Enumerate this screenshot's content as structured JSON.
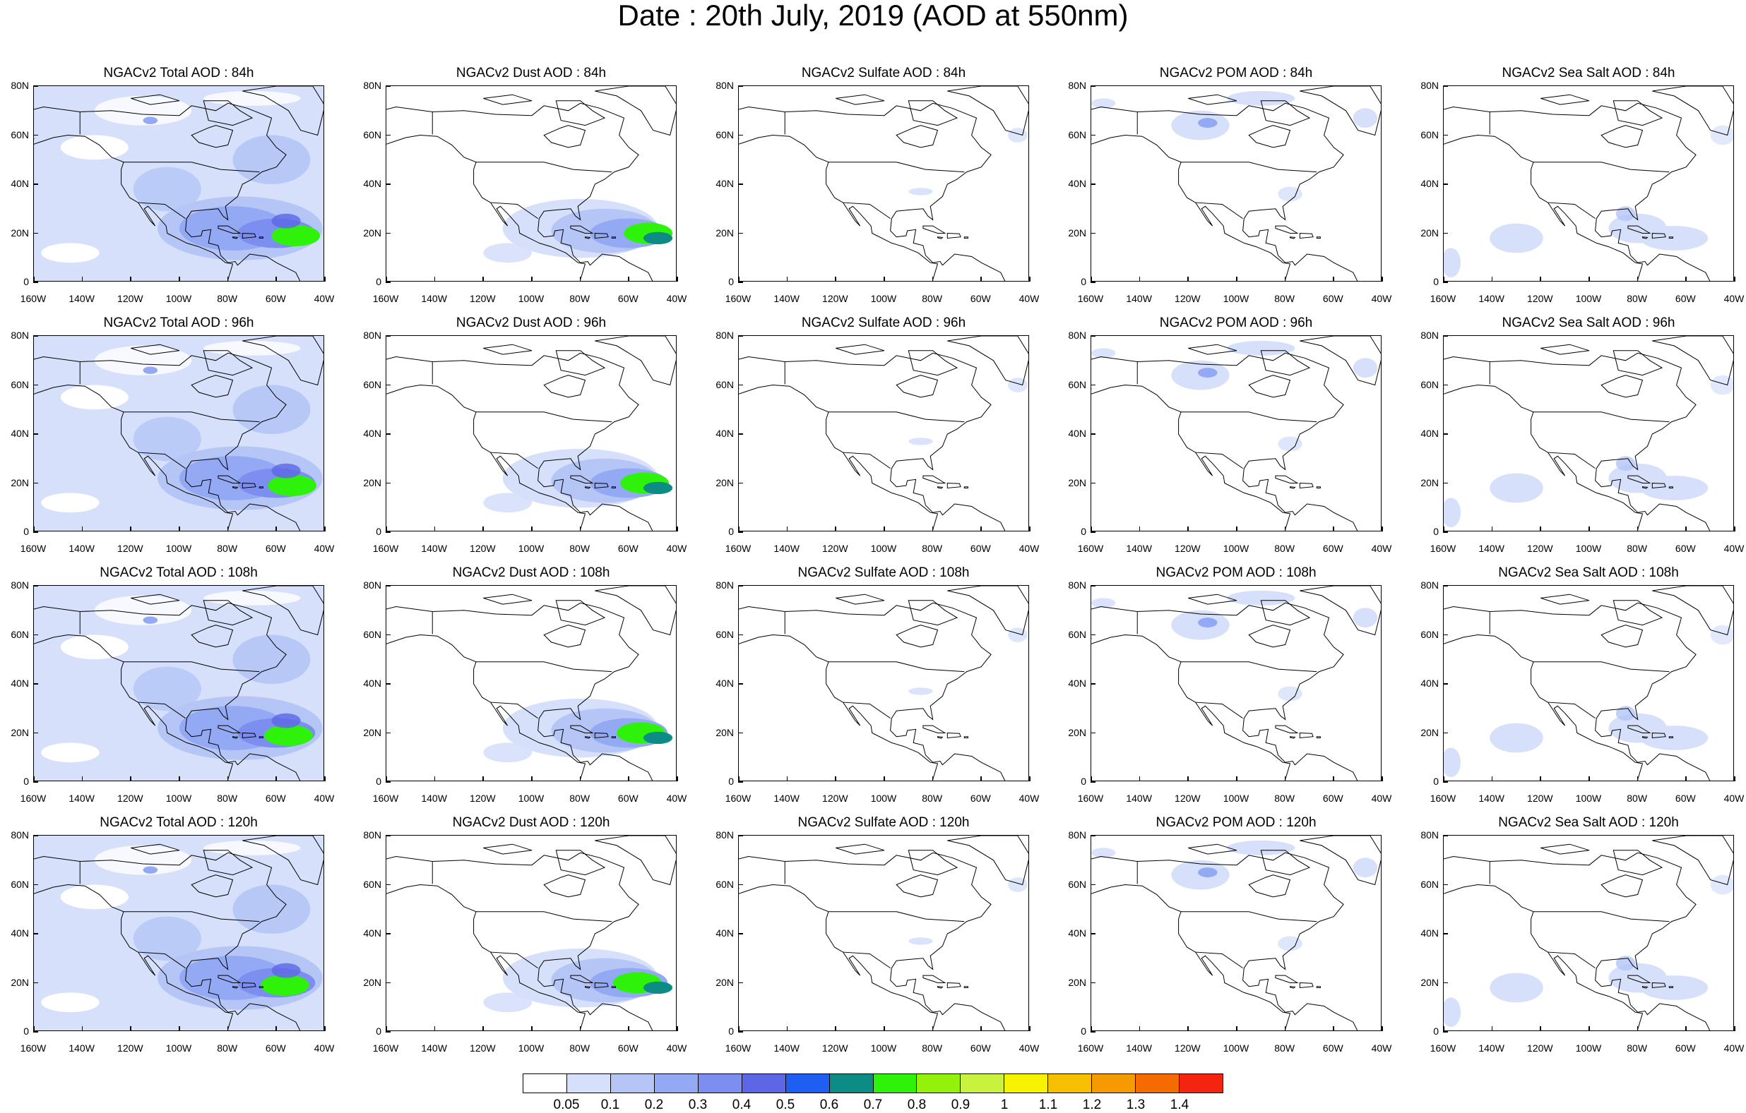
{
  "title": "Date : 20th July, 2019 (AOD at 550nm)",
  "x_ticks": [
    "160W",
    "140W",
    "120W",
    "100W",
    "80W",
    "60W",
    "40W"
  ],
  "y_ticks": [
    "80N",
    "60N",
    "40N",
    "20N",
    "0"
  ],
  "rows": [
    {
      "hour": "84h",
      "titles": [
        "NGACv2 Total AOD : 84h",
        "NGACv2 Dust AOD : 84h",
        "NGACv2 Sulfate AOD : 84h",
        "NGACv2 POM AOD : 84h",
        "NGACv2 Sea Salt AOD : 84h"
      ]
    },
    {
      "hour": "96h",
      "titles": [
        "NGACv2 Total AOD : 96h",
        "NGACv2 Dust AOD : 96h",
        "NGACv2 Sulfate AOD : 96h",
        "NGACv2 POM AOD : 96h",
        "NGACv2 Sea Salt AOD : 96h"
      ]
    },
    {
      "hour": "108h",
      "titles": [
        "NGACv2 Total AOD : 108h",
        "NGACv2 Dust AOD : 108h",
        "NGACv2 Sulfate AOD : 108h",
        "NGACv2 POM AOD : 108h",
        "NGACv2 Sea Salt AOD : 108h"
      ]
    },
    {
      "hour": "120h",
      "titles": [
        "NGACv2 Total AOD : 120h",
        "NGACv2 Dust AOD : 120h",
        "NGACv2 Sulfate AOD : 120h",
        "NGACv2 POM AOD : 120h",
        "NGACv2 Sea Salt  AOD : 120h"
      ]
    }
  ],
  "products": [
    "Total",
    "Dust",
    "Sulfate",
    "POM",
    "Sea Salt"
  ],
  "colorbar": {
    "labels": [
      "0.05",
      "0.1",
      "0.2",
      "0.3",
      "0.4",
      "0.5",
      "0.6",
      "0.7",
      "0.8",
      "0.9",
      "1",
      "1.1",
      "1.2",
      "1.3",
      "1.4"
    ],
    "colors": [
      "#ffffff",
      "#d6e0fb",
      "#b4c5f6",
      "#93a9f3",
      "#7c8ff0",
      "#5d66e6",
      "#1f5ef2",
      "#0d8c86",
      "#2ef20a",
      "#94f20a",
      "#c8f23e",
      "#f7f200",
      "#f6c000",
      "#f59b00",
      "#f46c00",
      "#f42410"
    ]
  }
}
